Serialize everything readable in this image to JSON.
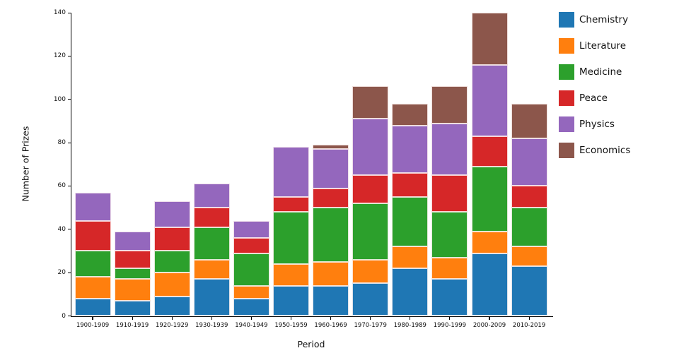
{
  "chart_data": {
    "type": "bar",
    "stacked": true,
    "title": "",
    "xlabel": "Period",
    "ylabel": "Number of Prizes",
    "ylim": [
      0,
      140
    ],
    "yticks": [
      0,
      20,
      40,
      60,
      80,
      100,
      120,
      140
    ],
    "grid": false,
    "legend_position": "upper-right-outside",
    "categories": [
      "1900-1909",
      "1910-1919",
      "1920-1929",
      "1930-1939",
      "1940-1949",
      "1950-1959",
      "1960-1969",
      "1970-1979",
      "1980-1989",
      "1990-1999",
      "2000-2009",
      "2010-2019"
    ],
    "series": [
      {
        "name": "Chemistry",
        "color": "#1f77b4",
        "values": [
          8,
          7,
          9,
          17,
          8,
          14,
          14,
          15,
          22,
          17,
          29,
          23
        ]
      },
      {
        "name": "Literature",
        "color": "#ff7f0e",
        "values": [
          10,
          10,
          11,
          9,
          6,
          10,
          11,
          11,
          10,
          10,
          10,
          9
        ]
      },
      {
        "name": "Medicine",
        "color": "#2ca02c",
        "values": [
          12,
          5,
          10,
          15,
          15,
          24,
          25,
          26,
          23,
          21,
          30,
          18
        ]
      },
      {
        "name": "Peace",
        "color": "#d62728",
        "values": [
          14,
          8,
          11,
          9,
          7,
          7,
          9,
          13,
          11,
          17,
          14,
          10
        ]
      },
      {
        "name": "Physics",
        "color": "#9467bd",
        "values": [
          13,
          9,
          12,
          11,
          8,
          23,
          18,
          26,
          22,
          24,
          33,
          22
        ]
      },
      {
        "name": "Economics",
        "color": "#8c564b",
        "values": [
          0,
          0,
          0,
          0,
          0,
          0,
          2,
          15,
          10,
          17,
          24,
          16
        ]
      }
    ],
    "totals": [
      57,
      39,
      53,
      61,
      44,
      78,
      79,
      106,
      98,
      106,
      140,
      98
    ]
  }
}
